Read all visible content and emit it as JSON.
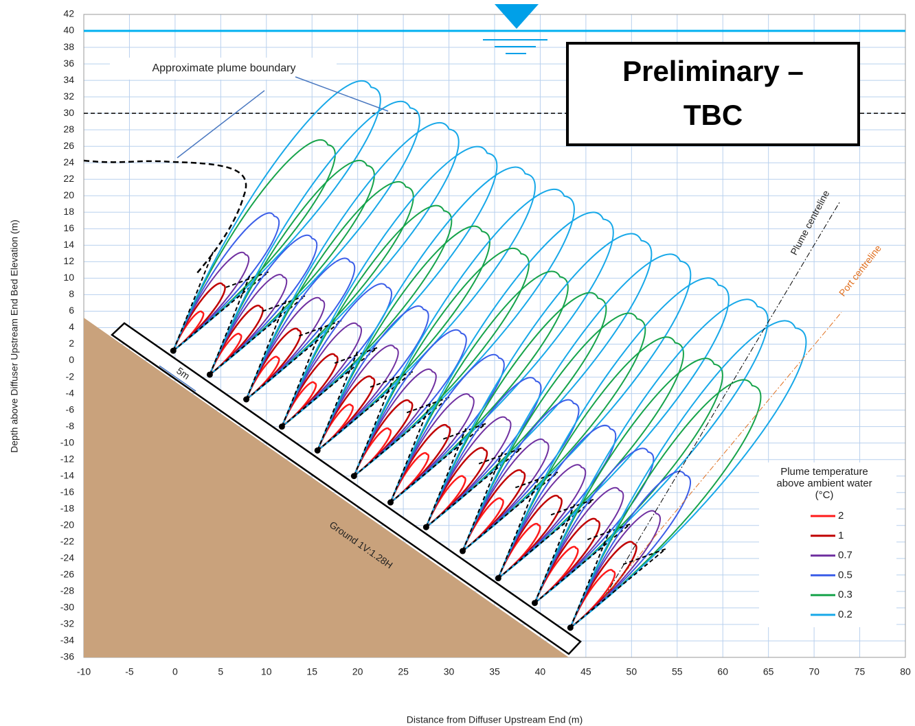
{
  "chart_data": {
    "type": "plume",
    "x_label": "Distance from Diffuser Upstream End (m)",
    "y_label": "Depth above Diffuser Upstream End Bed Elevation (m)",
    "xlim": [
      -10,
      80
    ],
    "xticks": [
      -10,
      -5,
      0,
      5,
      10,
      15,
      20,
      25,
      30,
      35,
      40,
      45,
      50,
      55,
      60,
      65,
      70,
      75,
      80
    ],
    "ylim": [
      -36,
      42
    ],
    "yticks": [
      -36,
      -34,
      -32,
      -30,
      -28,
      -26,
      -24,
      -22,
      -20,
      -18,
      -16,
      -14,
      -12,
      -10,
      -8,
      -6,
      -4,
      -2,
      0,
      2,
      4,
      6,
      8,
      10,
      12,
      14,
      16,
      18,
      20,
      22,
      24,
      26,
      28,
      30,
      32,
      34,
      36,
      38,
      40,
      42
    ],
    "grid": true,
    "reference_lines": [
      {
        "value": 40,
        "color": "#00b0f0",
        "style": "solid"
      },
      {
        "value": 30,
        "color": "#000000",
        "style": "dashed"
      }
    ],
    "ports": {
      "x": [
        -0.2,
        3.8,
        7.8,
        11.7,
        15.6,
        19.6,
        23.6,
        27.5,
        31.5,
        35.4,
        39.4,
        43.3
      ],
      "y": [
        1.2,
        -1.7,
        -4.7,
        -8,
        -10.9,
        -14,
        -17.2,
        -20.2,
        -23.1,
        -26.4,
        -29.4,
        -32.4
      ]
    },
    "legend_title": [
      "Plume temperature",
      "above ambient water",
      "(°C)"
    ],
    "contours": [
      {
        "name": "2",
        "color": "#ff1a1a"
      },
      {
        "name": "1",
        "color": "#c00000"
      },
      {
        "name": "0.7",
        "color": "#7030a0"
      },
      {
        "name": "0.5",
        "color": "#3b5ee8"
      },
      {
        "name": "0.3",
        "color": "#16a34a"
      },
      {
        "name": "0.2",
        "color": "#17a8e8"
      }
    ],
    "annotations": {
      "boundary_label": "Approximate plume boundary",
      "stamp": [
        "Preliminary –",
        "TBC"
      ],
      "spacing_label": "5m",
      "ground_label": "Ground 1V:1.28H",
      "plume_centreline_label": "Plume centreline",
      "port_centreline_label": "Port centreline"
    }
  }
}
